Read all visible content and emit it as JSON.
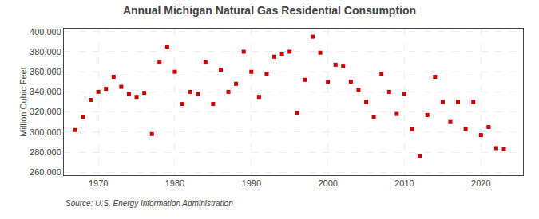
{
  "chart_data": {
    "type": "scatter",
    "title": "Annual Michigan Natural Gas Residential Consumption",
    "ylabel": "Million Cubic Feet",
    "annotations": [
      "Source: U.S. Energy Information Administration"
    ],
    "x": [
      1967,
      1968,
      1969,
      1970,
      1971,
      1972,
      1973,
      1974,
      1975,
      1976,
      1977,
      1978,
      1979,
      1980,
      1981,
      1982,
      1983,
      1984,
      1985,
      1986,
      1987,
      1988,
      1989,
      1990,
      1991,
      1992,
      1993,
      1994,
      1995,
      1996,
      1997,
      1998,
      1999,
      2000,
      2001,
      2002,
      2003,
      2004,
      2005,
      2006,
      2007,
      2008,
      2009,
      2010,
      2011,
      2012,
      2013,
      2014,
      2015,
      2016,
      2017,
      2018,
      2019,
      2020,
      2021,
      2022,
      2023
    ],
    "values": [
      302000,
      315000,
      332000,
      340000,
      343000,
      355000,
      345000,
      338000,
      335000,
      339000,
      298000,
      370000,
      385000,
      360000,
      328000,
      340000,
      338000,
      370000,
      328000,
      362000,
      340000,
      348000,
      380000,
      360000,
      335000,
      358000,
      375000,
      378000,
      380000,
      319000,
      352000,
      395000,
      379000,
      350000,
      367000,
      366000,
      350000,
      342000,
      330000,
      315000,
      358000,
      340000,
      318000,
      338000,
      303000,
      276000,
      317000,
      355000,
      330000,
      310000,
      330000,
      303000,
      330000,
      297000,
      305000,
      284000,
      283000
    ],
    "color": "#cc0000",
    "marker": "square",
    "xlim": [
      1965.5,
      2025.5
    ],
    "xticks": [
      1970,
      1980,
      1990,
      2000,
      2010,
      2020
    ],
    "ylim": [
      257000,
      403000
    ],
    "yticks": [
      {
        "value": 260000,
        "label": "260,000"
      },
      {
        "value": 280000,
        "label": "280,000"
      },
      {
        "value": 300000,
        "label": "300,000"
      },
      {
        "value": 320000,
        "label": "320,000"
      },
      {
        "value": 340000,
        "label": "340,000"
      },
      {
        "value": 360000,
        "label": "360,000"
      },
      {
        "value": 380000,
        "label": "380,000"
      },
      {
        "value": 400000,
        "label": "400,000"
      }
    ],
    "grid": true
  }
}
